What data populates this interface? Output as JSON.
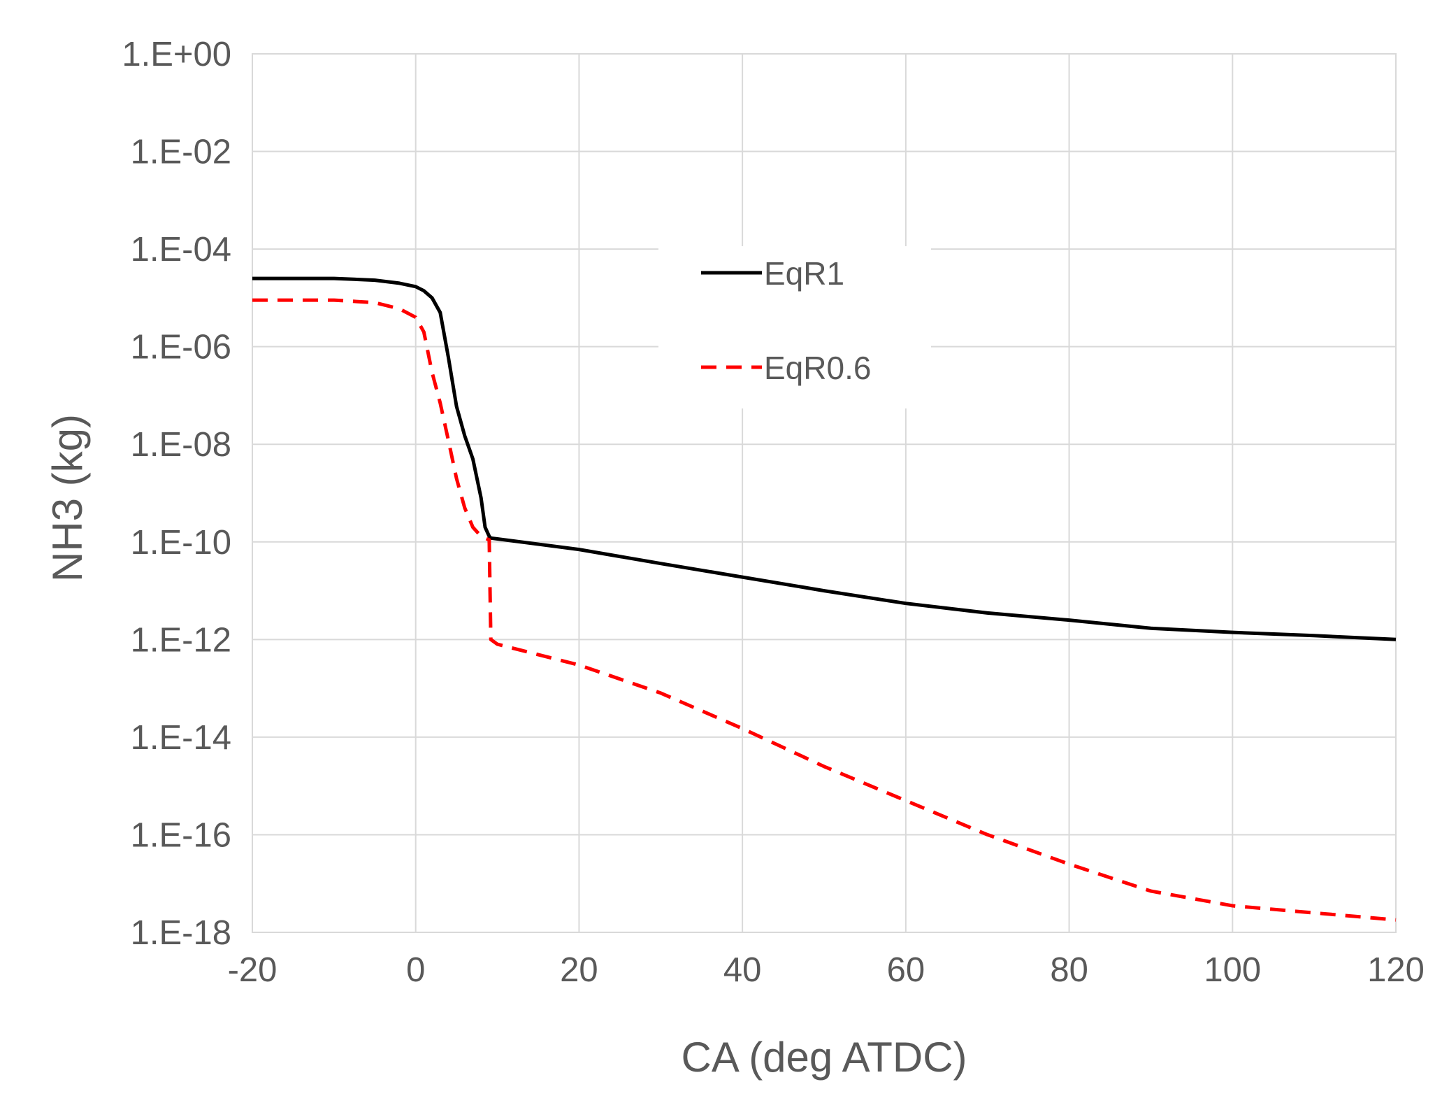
{
  "chart_data": {
    "type": "line",
    "title": "",
    "xlabel": "CA (deg ATDC)",
    "ylabel": "NH3 (kg)",
    "xlim": [
      -20,
      120
    ],
    "ylim": [
      1e-18,
      1
    ],
    "yscale": "log",
    "grid": true,
    "legend_position": "top-center",
    "x_ticks": [
      -20,
      0,
      20,
      40,
      60,
      80,
      100,
      120
    ],
    "x_tick_labels": [
      "-20",
      "0",
      "20",
      "40",
      "60",
      "80",
      "100",
      "120"
    ],
    "y_ticks": [
      1.0,
      0.01,
      0.0001,
      1e-06,
      1e-08,
      1e-10,
      1e-12,
      1e-14,
      1e-16,
      1e-18
    ],
    "y_tick_labels": [
      "1.E+00",
      "1.E-02",
      "1.E-04",
      "1.E-06",
      "1.E-08",
      "1.E-10",
      "1.E-12",
      "1.E-14",
      "1.E-16",
      "1.E-18"
    ],
    "series": [
      {
        "name": "EqR1",
        "color": "#000000",
        "style": "solid",
        "x": [
          -20,
          -10,
          -5,
          -2,
          0,
          1,
          2,
          3,
          4,
          5,
          6,
          7,
          8,
          8.5,
          9,
          9.2,
          10,
          20,
          30,
          40,
          50,
          60,
          70,
          80,
          90,
          100,
          110,
          120
        ],
        "y": [
          2.5e-05,
          2.5e-05,
          2.3e-05,
          2e-05,
          1.7e-05,
          1.4e-05,
          1e-05,
          5e-06,
          6e-07,
          6e-08,
          1.5e-08,
          5e-09,
          8e-10,
          2e-10,
          1.3e-10,
          1.2e-10,
          1.15e-10,
          7e-11,
          3.6e-11,
          1.9e-11,
          1e-11,
          5.5e-12,
          3.5e-12,
          2.5e-12,
          1.7e-12,
          1.4e-12,
          1.2e-12,
          1e-12
        ]
      },
      {
        "name": "EqR0.6",
        "color": "#ff0000",
        "style": "dashed",
        "x": [
          -20,
          -10,
          -5,
          -2,
          0,
          1,
          2,
          3,
          4,
          5,
          6,
          7,
          8,
          8.5,
          9,
          9.2,
          10,
          20,
          30,
          40,
          50,
          60,
          70,
          80,
          90,
          100,
          110,
          120
        ],
        "y": [
          9e-06,
          9e-06,
          8e-06,
          6e-06,
          4e-06,
          2e-06,
          3e-07,
          7e-08,
          1.2e-08,
          2e-09,
          5e-10,
          2e-10,
          1.3e-10,
          1.2e-10,
          1.1e-10,
          1e-12,
          8e-13,
          3e-13,
          8e-14,
          1.5e-14,
          2.5e-15,
          5e-16,
          1e-16,
          2.5e-17,
          7e-18,
          3.5e-18,
          2.5e-18,
          1.8e-18
        ]
      }
    ]
  }
}
